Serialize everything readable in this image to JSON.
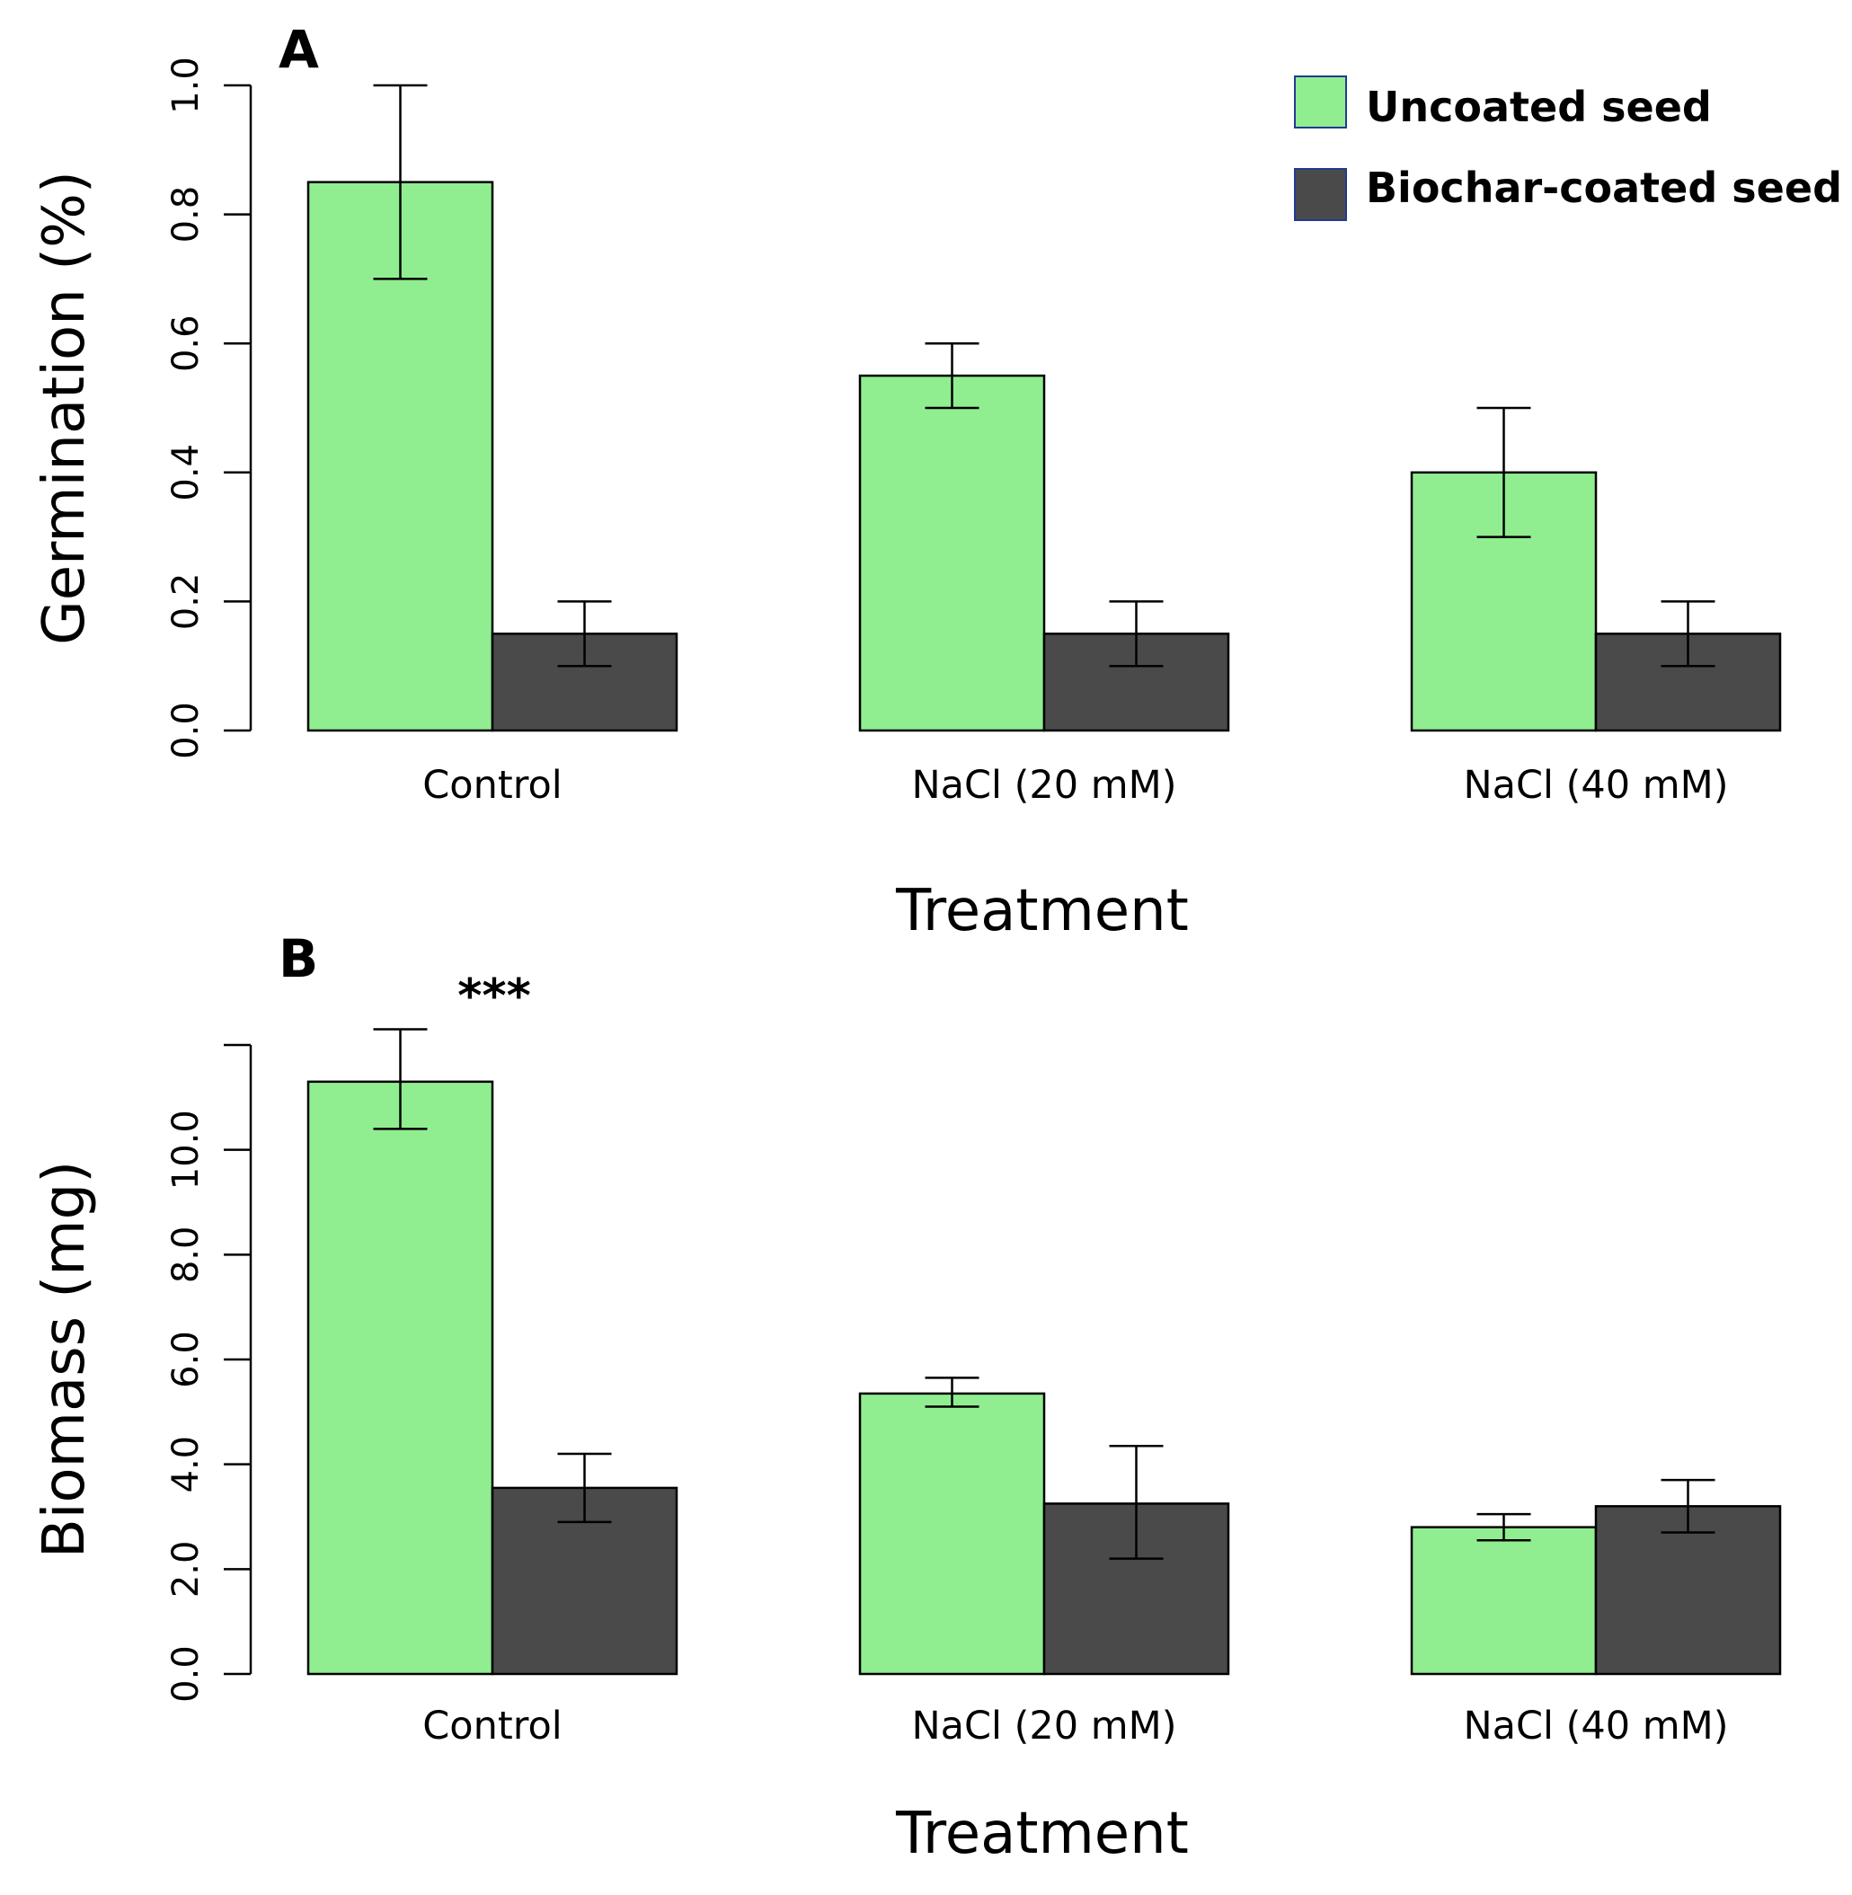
{
  "legend": {
    "items": [
      {
        "label": "Uncoated seed",
        "color": "#90ee90"
      },
      {
        "label": "Biochar-coated seed",
        "color": "#4a4a4a"
      }
    ]
  },
  "chart_data": [
    {
      "type": "bar",
      "panel": "A",
      "title": "",
      "xlabel": "Treatment",
      "ylabel": "Germination (%)",
      "categories": [
        "Control",
        "NaCl (20 mM)",
        "NaCl (40 mM)"
      ],
      "ylim": [
        0,
        1.0
      ],
      "yticks": [
        "0.0",
        "0.2",
        "0.4",
        "0.6",
        "0.8",
        "1.0"
      ],
      "series": [
        {
          "name": "Uncoated seed",
          "color": "#90ee90",
          "values": [
            0.85,
            0.55,
            0.4
          ],
          "err_low": [
            0.7,
            0.5,
            0.3
          ],
          "err_high": [
            1.0,
            0.6,
            0.5
          ]
        },
        {
          "name": "Biochar-coated seed",
          "color": "#4a4a4a",
          "values": [
            0.15,
            0.15,
            0.15
          ],
          "err_low": [
            0.1,
            0.1,
            0.1
          ],
          "err_high": [
            0.2,
            0.2,
            0.2
          ]
        }
      ],
      "annotations": []
    },
    {
      "type": "bar",
      "panel": "B",
      "title": "",
      "xlabel": "Treatment",
      "ylabel": "Biomass (mg)",
      "categories": [
        "Control",
        "NaCl (20 mM)",
        "NaCl (40 mM)"
      ],
      "ylim": [
        0,
        12.0
      ],
      "yticks": [
        "0.0",
        "2.0",
        "4.0",
        "6.0",
        "8.0",
        "10.0",
        ""
      ],
      "series": [
        {
          "name": "Uncoated seed",
          "color": "#90ee90",
          "values": [
            11.3,
            5.35,
            2.8
          ],
          "err_low": [
            10.4,
            5.1,
            2.55
          ],
          "err_high": [
            12.3,
            5.65,
            3.05
          ]
        },
        {
          "name": "Biochar-coated seed",
          "color": "#4a4a4a",
          "values": [
            3.55,
            3.25,
            3.2
          ],
          "err_low": [
            2.9,
            2.2,
            2.7
          ],
          "err_high": [
            4.2,
            4.35,
            3.7
          ]
        }
      ],
      "annotations": [
        {
          "text": "***",
          "category": 0
        }
      ]
    }
  ]
}
